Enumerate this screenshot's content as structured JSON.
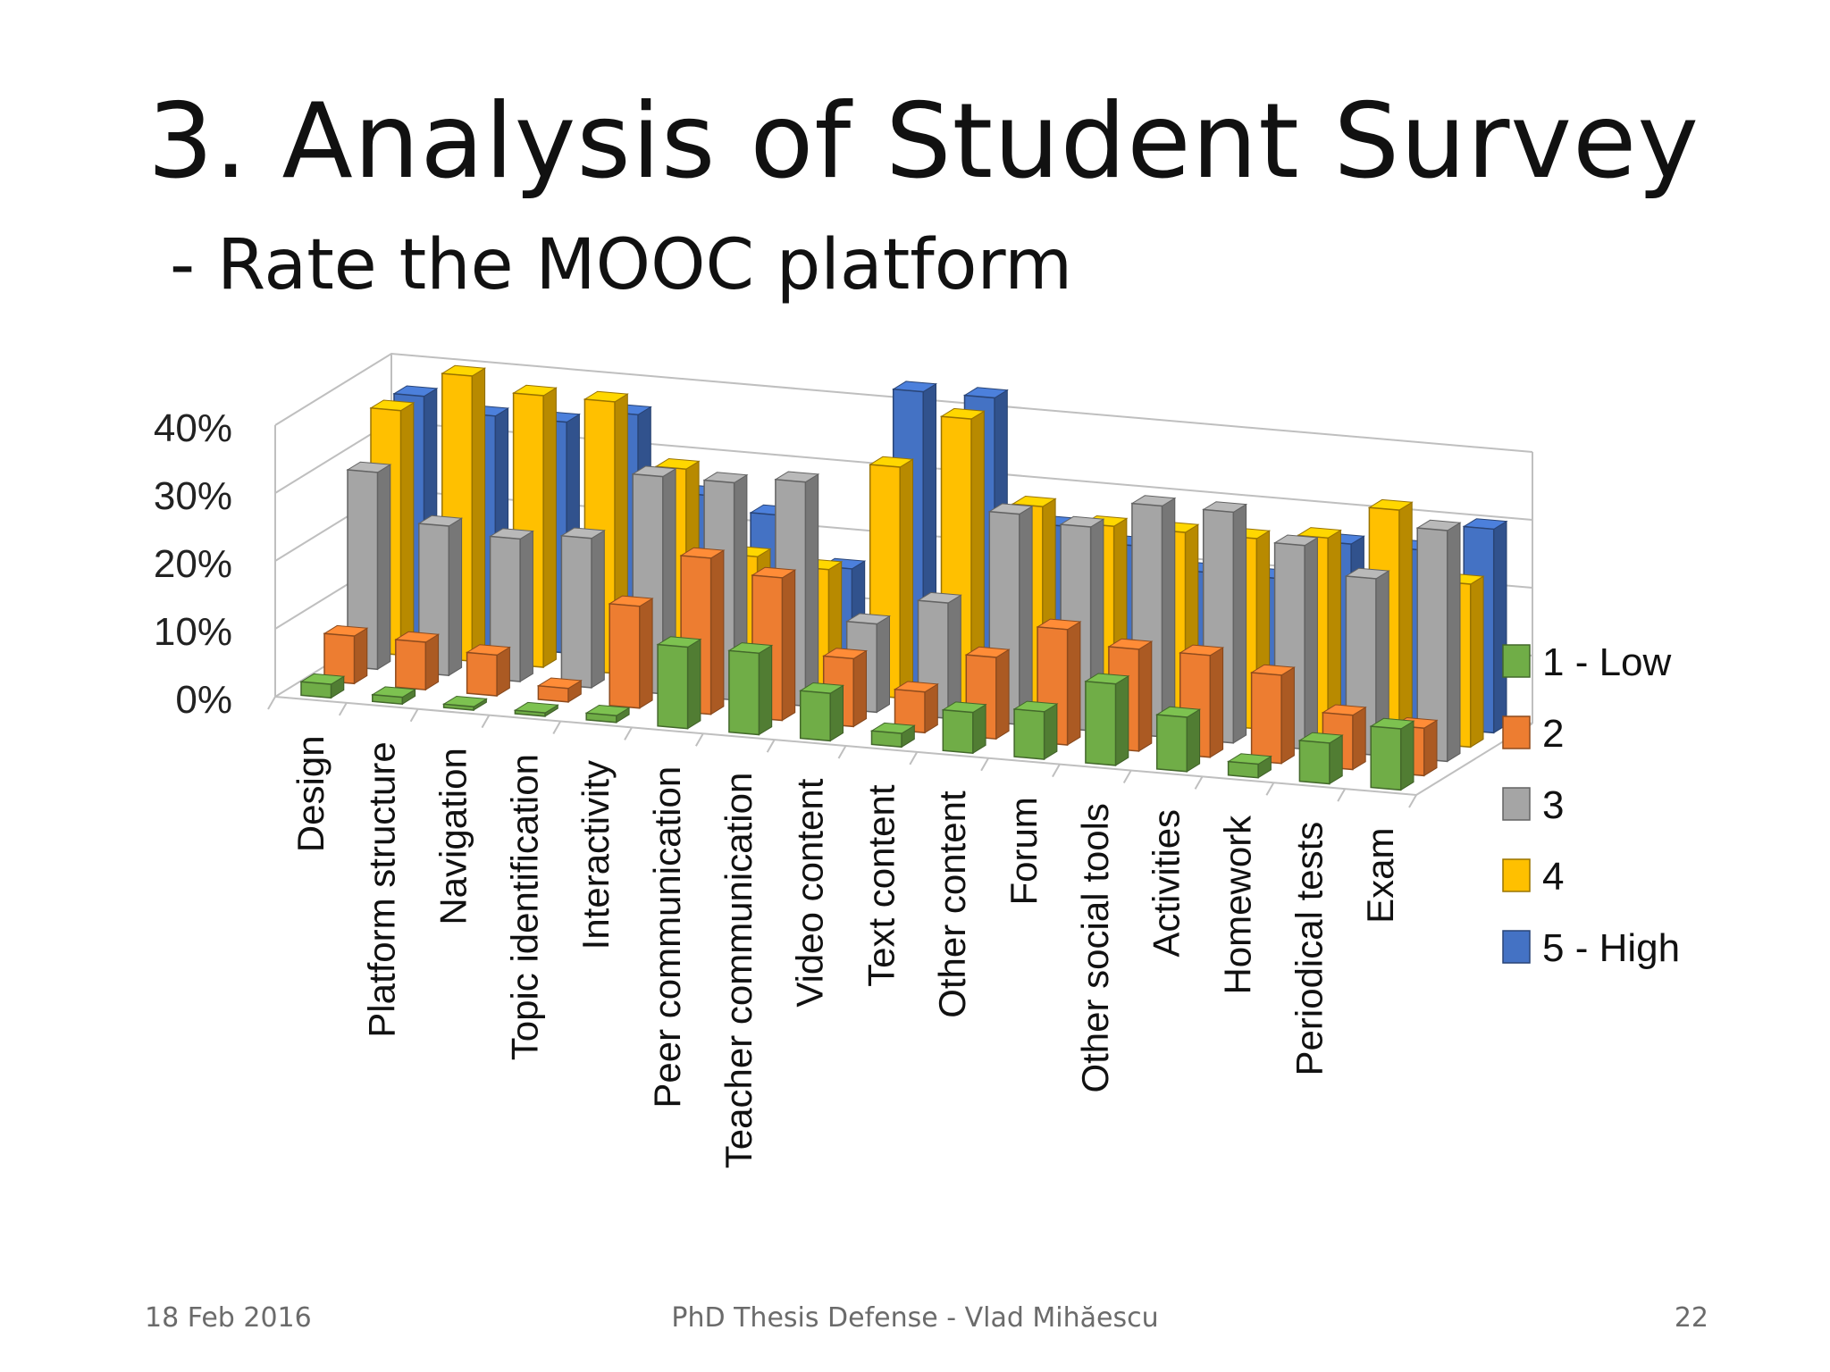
{
  "slide": {
    "title": "3. Analysis of Student Survey",
    "subtitle": "- Rate the MOOC platform"
  },
  "footer": {
    "date": "18 Feb 2016",
    "center": "PhD Thesis Defense - Vlad Mihăescu",
    "page": "22"
  },
  "chart_data": {
    "type": "bar",
    "style": "3d-clustered-column",
    "categories": [
      "Design",
      "Platform structure",
      "Navigation",
      "Topic identification",
      "Interactivity",
      "Peer communication",
      "Teacher communication",
      "Video content",
      "Text content",
      "Other content",
      "Forum",
      "Other social tools",
      "Activities",
      "Homework",
      "Periodical tests",
      "Exam"
    ],
    "series": [
      {
        "name": "1 - Low",
        "color": "#70ad47",
        "values": [
          2,
          1,
          0.5,
          0.5,
          1,
          12,
          12,
          7,
          2,
          6,
          7,
          12,
          8,
          2,
          6,
          9
        ]
      },
      {
        "name": "2",
        "color": "#ed7d31",
        "values": [
          7,
          7,
          6,
          2,
          15,
          23,
          21,
          10,
          6,
          12,
          17,
          15,
          15,
          13,
          8,
          7
        ]
      },
      {
        "name": "3",
        "color": "#a5a5a5",
        "values": [
          29,
          22,
          21,
          22,
          32,
          32,
          33,
          13,
          17,
          31,
          30,
          34,
          34,
          30,
          26,
          34
        ]
      },
      {
        "name": "4",
        "color": "#ffc000",
        "values": [
          36,
          42,
          40,
          40,
          31,
          19,
          18,
          34,
          42,
          30,
          28,
          28,
          28,
          29,
          34,
          24
        ]
      },
      {
        "name": "5 - High",
        "color": "#4472c4",
        "values": [
          36,
          34,
          34,
          36,
          25,
          23,
          16,
          43,
          43,
          25,
          23,
          20,
          20,
          26,
          26,
          30
        ]
      }
    ],
    "yaxis": {
      "ticks": [
        "0%",
        "10%",
        "20%",
        "30%",
        "40%"
      ],
      "ylim": [
        0,
        40
      ]
    },
    "legend_position": "right",
    "grid": true
  }
}
